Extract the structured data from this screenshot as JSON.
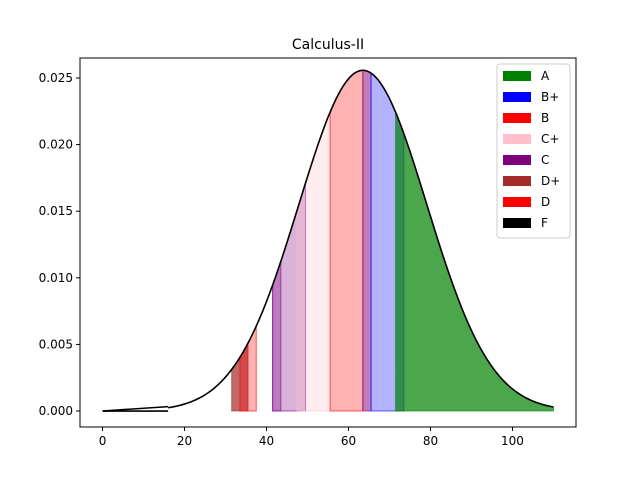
{
  "chart_data": {
    "type": "area",
    "title": "Calculus-II",
    "xlabel": "",
    "ylabel": "",
    "xlim": [
      -5.5,
      115.5
    ],
    "ylim": [
      -0.0012,
      0.0265
    ],
    "x_ticks": [
      0,
      20,
      40,
      60,
      80,
      100
    ],
    "x_tick_labels": [
      "0",
      "20",
      "40",
      "60",
      "80",
      "100"
    ],
    "y_ticks": [
      0.0,
      0.005,
      0.01,
      0.015,
      0.02,
      0.025
    ],
    "y_tick_labels": [
      "0.000",
      "0.005",
      "0.010",
      "0.015",
      "0.020",
      "0.025"
    ],
    "curve": {
      "distribution": "normal",
      "mean": 63.5,
      "std_dev": 15.6,
      "x_start": 16,
      "x_end": 110,
      "low_segment": {
        "x": [
          0,
          16
        ],
        "y": [
          0.0,
          0.00033
        ]
      },
      "color": "#000000"
    },
    "legend": {
      "position": "upper right",
      "entries": [
        {
          "label": "A",
          "color": "#008000"
        },
        {
          "label": "B+",
          "color": "#0000ff"
        },
        {
          "label": "B",
          "color": "#ff0000"
        },
        {
          "label": "C+",
          "color": "#ffc0cb"
        },
        {
          "label": "C",
          "color": "#800080"
        },
        {
          "label": "D+",
          "color": "#a52a2a"
        },
        {
          "label": "D",
          "color": "#ff0000"
        },
        {
          "label": "F",
          "color": "#000000"
        }
      ]
    },
    "bands": [
      {
        "grade": "D+",
        "x0": 31.5,
        "x1": 35.5,
        "color": "#a52a2a",
        "opacity": 0.7
      },
      {
        "grade": "D",
        "x0": 33.5,
        "x1": 37.5,
        "color": "#ff0000",
        "opacity": 0.3
      },
      {
        "grade": "C",
        "x0": 41.5,
        "x1": 49.5,
        "color": "#800080",
        "opacity": 0.3
      },
      {
        "grade": "C",
        "x0": 41.5,
        "x1": 43.5,
        "color": "#800080",
        "opacity": 0.3
      },
      {
        "grade": "C+",
        "x0": 47.5,
        "x1": 55.5,
        "color": "#ffc0cb",
        "opacity": 0.3
      },
      {
        "grade": "B",
        "x0": 55.5,
        "x1": 63.5,
        "color": "#ff0000",
        "opacity": 0.3
      },
      {
        "grade": "C",
        "x0": 63.5,
        "x1": 65.5,
        "color": "#800080",
        "opacity": 0.5
      },
      {
        "grade": "B+",
        "x0": 65.5,
        "x1": 73.5,
        "color": "#0000ff",
        "opacity": 0.3
      },
      {
        "grade": "A",
        "x0": 71.5,
        "x1": 110,
        "color": "#008000",
        "opacity": 0.7
      }
    ]
  }
}
